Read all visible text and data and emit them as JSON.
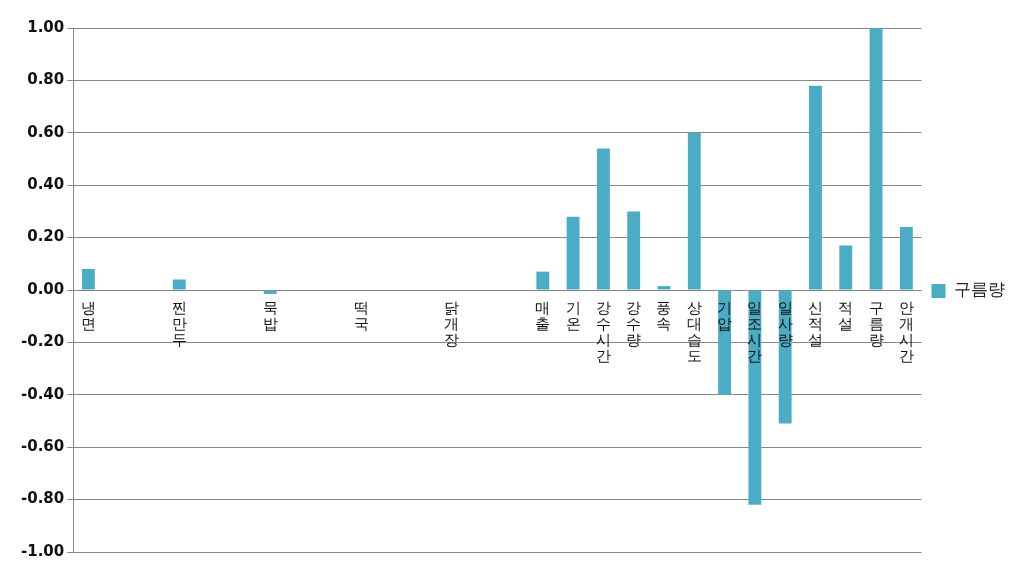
{
  "chart_data": {
    "type": "bar",
    "categories": [
      "냉면",
      null,
      null,
      "찐만두",
      null,
      null,
      "묵밥",
      null,
      null,
      "떡국",
      null,
      null,
      "닭개장",
      null,
      null,
      "매출",
      "기온",
      "강수시간",
      "강수량",
      "풍속",
      "상대습도",
      "기압",
      "일조시간",
      "일사량",
      "신적설",
      "적설",
      "구름량",
      "안개시간"
    ],
    "series": [
      {
        "name": "구름량",
        "color": "#4bacc6",
        "values": [
          0.08,
          null,
          null,
          0.04,
          null,
          null,
          -0.015,
          null,
          null,
          0,
          null,
          null,
          0,
          null,
          null,
          0.07,
          0.28,
          0.54,
          0.3,
          0.015,
          0.6,
          -0.4,
          -0.82,
          -0.51,
          0.78,
          0.17,
          1.0,
          0.24
        ]
      }
    ],
    "ylim": [
      -1,
      1
    ],
    "yticks": [
      {
        "value": -1,
        "label": "-1.00"
      },
      {
        "value": -0.8,
        "label": "-0.80"
      },
      {
        "value": -0.6,
        "label": "-0.60"
      },
      {
        "value": -0.4,
        "label": "-0.40"
      },
      {
        "value": -0.2,
        "label": "-0.20"
      },
      {
        "value": 0,
        "label": "0.00"
      },
      {
        "value": 0.2,
        "label": "0.20"
      },
      {
        "value": 0.4,
        "label": "0.40"
      },
      {
        "value": 0.6,
        "label": "0.60"
      },
      {
        "value": 0.8,
        "label": "0.80"
      },
      {
        "value": 1,
        "label": "1.00"
      }
    ],
    "grid": "y",
    "legend": "right"
  }
}
